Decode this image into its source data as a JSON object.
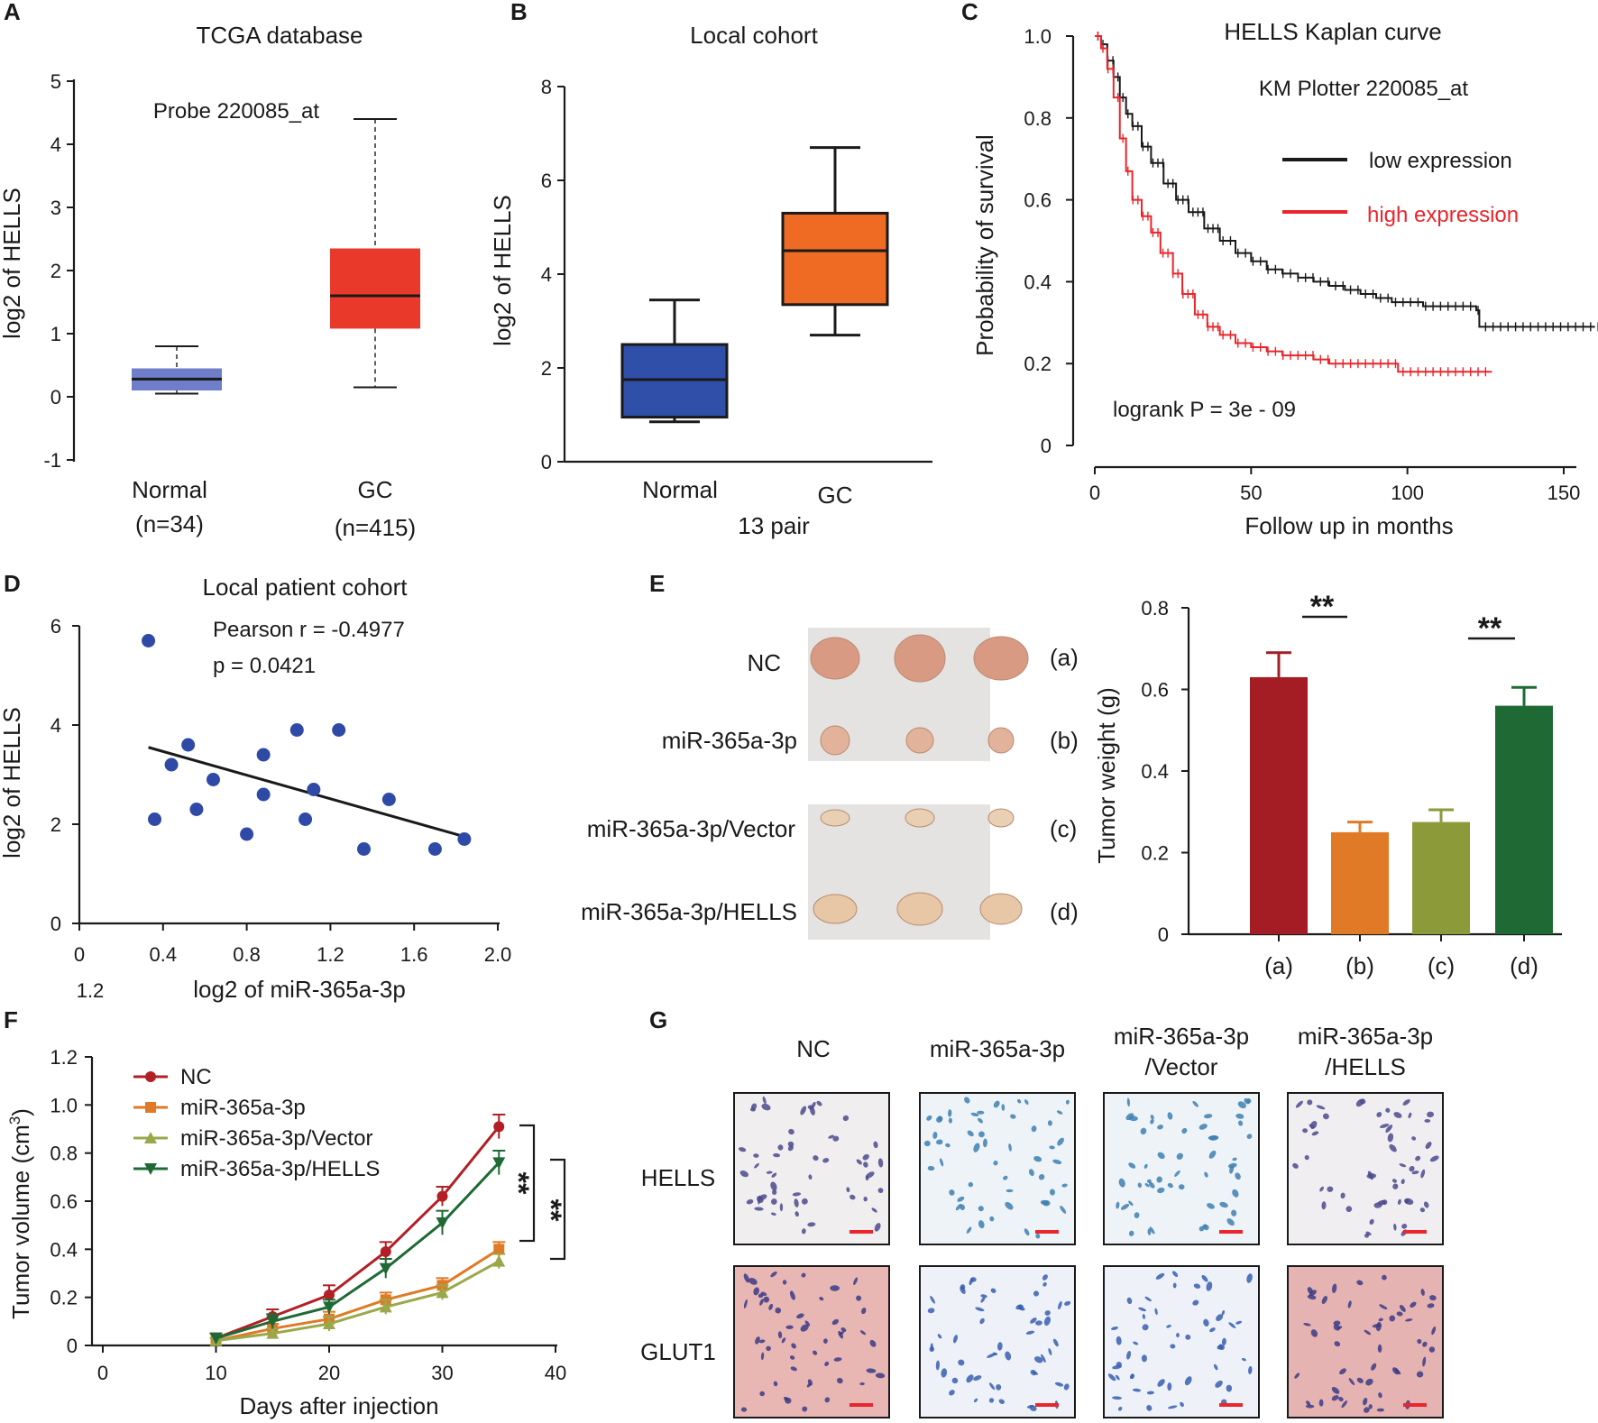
{
  "panels": {
    "a": "A",
    "b": "B",
    "c": "C",
    "d": "D",
    "e": "E",
    "f": "F",
    "g": "G"
  },
  "colors": {
    "normal_box_a": "#6f7ec9",
    "gc_box_a": "#e8392b",
    "normal_box_b": "#2f4fa8",
    "gc_box_b": "#ef6a23",
    "km_low": "#1a1a1a",
    "km_high": "#e8262c",
    "scatter": "#2f4aa6",
    "bar_a": "#a41d25",
    "bar_b": "#e07a26",
    "bar_c": "#8c9a3a",
    "bar_d": "#1f6a34",
    "nc": "#b21f25",
    "mir": "#e07a26",
    "vector": "#9aa84a",
    "hells": "#1f6a34",
    "scale_bar": "#e8262c"
  },
  "chart_data": [
    {
      "id": "A",
      "type": "box",
      "title": "TCGA database",
      "annotation": "Probe 220085_at",
      "ylabel": "log2 of HELLS",
      "ylim": [
        -1,
        5
      ],
      "yticks": [
        "-1",
        "0",
        "1",
        "2",
        "3",
        "4",
        "5"
      ],
      "categories": [
        "Normal",
        "GC"
      ],
      "category_sub": [
        "(n=34)",
        "(n=415)"
      ],
      "boxes": [
        {
          "name": "Normal",
          "min": 0.05,
          "q1": 0.1,
          "median": 0.28,
          "q3": 0.45,
          "max": 0.8
        },
        {
          "name": "GC",
          "min": 0.15,
          "q1": 1.08,
          "median": 1.6,
          "q3": 2.35,
          "max": 4.4
        }
      ]
    },
    {
      "id": "B",
      "type": "box",
      "title": "Local cohort",
      "ylabel": "log2 of HELLS",
      "xlabel": "13 pair",
      "ylim": [
        0,
        8
      ],
      "yticks": [
        "0",
        "2",
        "4",
        "6",
        "8"
      ],
      "categories": [
        "Normal",
        "GC"
      ],
      "boxes": [
        {
          "name": "Normal",
          "min": 0.85,
          "q1": 0.95,
          "median": 1.75,
          "q3": 2.5,
          "max": 3.45
        },
        {
          "name": "GC",
          "min": 2.7,
          "q1": 3.35,
          "median": 4.5,
          "q3": 5.3,
          "max": 6.7
        }
      ]
    },
    {
      "id": "C",
      "type": "line",
      "title": "HELLS Kaplan curve",
      "subtitle": "KM Plotter 220085_at",
      "xlabel": "Follow up in months",
      "ylabel": "Probability of survival",
      "xlim": [
        0,
        150
      ],
      "ylim": [
        0,
        1
      ],
      "xticks": [
        "0",
        "50",
        "100",
        "150"
      ],
      "yticks": [
        "0",
        "0.2",
        "0.4",
        "0.6",
        "0.8",
        "1.0"
      ],
      "pvalue": "logrank P = 3e - 09",
      "series": [
        {
          "name": "low expression",
          "x": [
            0,
            2,
            4,
            6,
            8,
            10,
            12,
            15,
            18,
            22,
            26,
            30,
            35,
            40,
            45,
            50,
            55,
            60,
            65,
            70,
            75,
            80,
            85,
            90,
            95,
            100,
            105,
            110,
            115,
            122,
            123,
            160
          ],
          "y": [
            1.0,
            0.98,
            0.94,
            0.9,
            0.85,
            0.81,
            0.78,
            0.73,
            0.69,
            0.64,
            0.6,
            0.57,
            0.53,
            0.5,
            0.47,
            0.45,
            0.43,
            0.42,
            0.41,
            0.4,
            0.39,
            0.38,
            0.37,
            0.36,
            0.35,
            0.35,
            0.34,
            0.34,
            0.34,
            0.33,
            0.29,
            0.29
          ]
        },
        {
          "name": "high expression",
          "x": [
            0,
            2,
            4,
            6,
            8,
            10,
            12,
            15,
            18,
            21,
            25,
            28,
            32,
            36,
            40,
            45,
            50,
            55,
            60,
            65,
            70,
            75,
            80,
            90,
            96,
            97,
            127
          ],
          "y": [
            1.0,
            0.97,
            0.92,
            0.85,
            0.75,
            0.67,
            0.6,
            0.56,
            0.52,
            0.47,
            0.42,
            0.37,
            0.32,
            0.29,
            0.27,
            0.25,
            0.24,
            0.23,
            0.22,
            0.22,
            0.21,
            0.2,
            0.2,
            0.2,
            0.2,
            0.18,
            0.18
          ]
        }
      ]
    },
    {
      "id": "D",
      "type": "scatter",
      "title": "Local patient cohort",
      "stats": [
        "Pearson r = -0.4977",
        "p = 0.0421"
      ],
      "xlabel": "log2 of miR-365a-3p",
      "ylabel": "log2 of HELLS",
      "xlim": [
        0,
        2.0
      ],
      "ylim": [
        0,
        6
      ],
      "xticks": [
        "0",
        "0.4",
        "0.8",
        "1.2",
        "1.6",
        "2.0"
      ],
      "yticks": [
        "0",
        "2",
        "4",
        "6"
      ],
      "stray_label": "1.2",
      "x": [
        0.33,
        0.36,
        0.44,
        0.52,
        0.56,
        0.64,
        0.8,
        0.88,
        0.88,
        1.04,
        1.08,
        1.12,
        1.24,
        1.36,
        1.48,
        1.7,
        1.84
      ],
      "y": [
        5.7,
        2.1,
        3.2,
        3.6,
        2.3,
        2.9,
        1.8,
        3.4,
        2.6,
        3.9,
        2.1,
        2.7,
        3.9,
        1.5,
        2.5,
        1.5,
        1.7
      ],
      "fit": {
        "x": [
          0.33,
          1.84
        ],
        "y": [
          3.55,
          1.75
        ]
      }
    },
    {
      "id": "E",
      "type": "bar",
      "ylabel": "Tumor weight (g)",
      "ylim": [
        0,
        0.8
      ],
      "yticks": [
        "0",
        "0.2",
        "0.4",
        "0.6",
        "0.8"
      ],
      "categories": [
        "(a)",
        "(b)",
        "(c)",
        "(d)"
      ],
      "values": [
        0.63,
        0.25,
        0.275,
        0.56
      ],
      "errors": [
        0.06,
        0.025,
        0.03,
        0.045
      ],
      "significance": [
        "**",
        "**"
      ]
    },
    {
      "id": "F",
      "type": "line",
      "xlabel": "Days after injection",
      "ylabel_main": "Tumor volume (cm",
      "ylabel_sup": "3",
      "ylabel_end": ")",
      "xlim": [
        0,
        40
      ],
      "ylim": [
        0,
        1.2
      ],
      "xticks": [
        "0",
        "10",
        "20",
        "30",
        "40"
      ],
      "yticks": [
        "0",
        "0.2",
        "0.4",
        "0.6",
        "0.8",
        "1.0",
        "1.2"
      ],
      "significance": [
        "**",
        "**"
      ],
      "x": [
        10,
        15,
        20,
        25,
        30,
        35
      ],
      "series": [
        {
          "name": "NC",
          "marker": "circle",
          "values": [
            0.03,
            0.12,
            0.21,
            0.39,
            0.62,
            0.91
          ],
          "errors": [
            0.02,
            0.03,
            0.04,
            0.04,
            0.04,
            0.05
          ]
        },
        {
          "name": "miR-365a-3p",
          "marker": "square",
          "values": [
            0.02,
            0.07,
            0.11,
            0.19,
            0.25,
            0.4
          ],
          "errors": [
            0.01,
            0.02,
            0.03,
            0.03,
            0.03,
            0.03
          ]
        },
        {
          "name": "miR-365a-3p/Vector",
          "marker": "triangle-up",
          "values": [
            0.02,
            0.05,
            0.09,
            0.16,
            0.22,
            0.35
          ],
          "errors": [
            0.01,
            0.02,
            0.03,
            0.03,
            0.03,
            0.03
          ]
        },
        {
          "name": "miR-365a-3p/HELLS",
          "marker": "triangle-down",
          "values": [
            0.03,
            0.1,
            0.16,
            0.32,
            0.51,
            0.76
          ],
          "errors": [
            0.02,
            0.03,
            0.03,
            0.04,
            0.05,
            0.05
          ]
        }
      ]
    }
  ],
  "tumor_photo": {
    "groups": [
      "NC",
      "miR-365a-3p",
      "miR-365a-3p/Vector",
      "miR-365a-3p/HELLS"
    ],
    "tags": [
      "(a)",
      "(b)",
      "(c)",
      "(d)"
    ]
  },
  "ihc": {
    "columns": [
      "NC",
      "miR-365a-3p",
      "miR-365a-3p\n/Vector",
      "miR-365a-3p\n/HELLS"
    ],
    "column_lines": [
      [
        "NC"
      ],
      [
        "miR-365a-3p"
      ],
      [
        "miR-365a-3p",
        "/Vector"
      ],
      [
        "miR-365a-3p",
        "/HELLS"
      ]
    ],
    "rows": [
      "HELLS",
      "GLUT1"
    ]
  }
}
